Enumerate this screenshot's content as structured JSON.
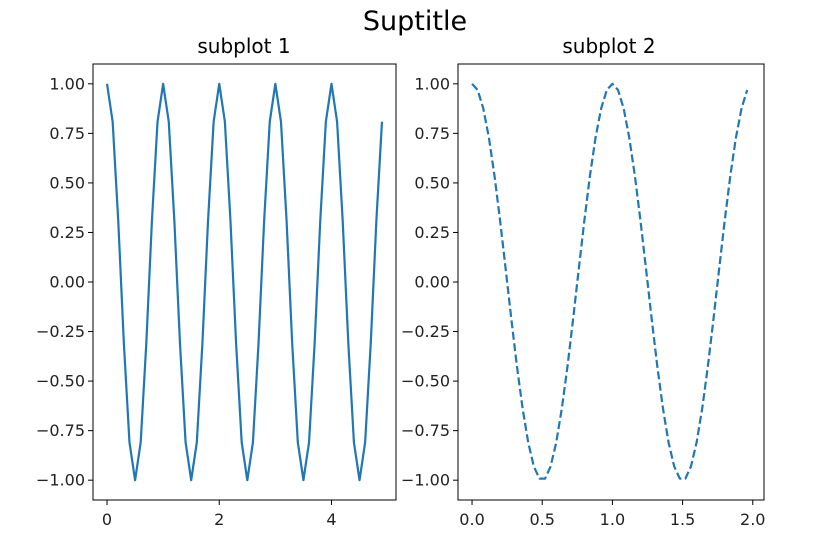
{
  "figure": {
    "suptitle": "Suptitle"
  },
  "chart_data": [
    {
      "type": "line",
      "title": "subplot 1",
      "xlabel": "",
      "ylabel": "",
      "xlim": [
        -0.25,
        5.15
      ],
      "ylim": [
        -1.1,
        1.1
      ],
      "xticks": [
        0,
        2,
        4
      ],
      "xtick_labels": [
        "0",
        "2",
        "4"
      ],
      "yticks": [
        1.0,
        0.75,
        0.5,
        0.25,
        0.0,
        -0.25,
        -0.5,
        -0.75,
        -1.0
      ],
      "ytick_labels": [
        "1.00",
        "0.75",
        "0.50",
        "0.25",
        "0.00",
        "−0.25",
        "−0.50",
        "−0.75",
        "−1.00"
      ],
      "grid": false,
      "series": [
        {
          "line_style": "solid",
          "color": "#1f77b4",
          "x": [
            0.0,
            0.1,
            0.2,
            0.3,
            0.4,
            0.5,
            0.6,
            0.7,
            0.8,
            0.9,
            1.0,
            1.1,
            1.2,
            1.3,
            1.4,
            1.5,
            1.6,
            1.7,
            1.8,
            1.9,
            2.0,
            2.1,
            2.2,
            2.3,
            2.4,
            2.5,
            2.6,
            2.7,
            2.8,
            2.9,
            3.0,
            3.1,
            3.2,
            3.3,
            3.4,
            3.5,
            3.6,
            3.7,
            3.8,
            3.9,
            4.0,
            4.1,
            4.2,
            4.3,
            4.4,
            4.5,
            4.6,
            4.7,
            4.8,
            4.9
          ],
          "y": [
            1.0,
            0.809,
            0.309,
            -0.309,
            -0.809,
            -1.0,
            -0.809,
            -0.309,
            0.309,
            0.809,
            1.0,
            0.809,
            0.309,
            -0.309,
            -0.809,
            -1.0,
            -0.809,
            -0.309,
            0.309,
            0.809,
            1.0,
            0.809,
            0.309,
            -0.309,
            -0.809,
            -1.0,
            -0.809,
            -0.309,
            0.309,
            0.809,
            1.0,
            0.809,
            0.309,
            -0.309,
            -0.809,
            -1.0,
            -0.809,
            -0.309,
            0.309,
            0.809,
            1.0,
            0.809,
            0.309,
            -0.309,
            -0.809,
            -1.0,
            -0.809,
            -0.309,
            0.309,
            0.809
          ]
        }
      ]
    },
    {
      "type": "line",
      "title": "subplot 2",
      "xlabel": "",
      "ylabel": "",
      "xlim": [
        -0.1,
        2.08
      ],
      "ylim": [
        -1.1,
        1.1
      ],
      "xticks": [
        0.0,
        0.5,
        1.0,
        1.5,
        2.0
      ],
      "xtick_labels": [
        "0.0",
        "0.5",
        "1.0",
        "1.5",
        "2.0"
      ],
      "yticks": [
        1.0,
        0.75,
        0.5,
        0.25,
        0.0,
        -0.25,
        -0.5,
        -0.75,
        -1.0
      ],
      "ytick_labels": [
        "1.00",
        "0.75",
        "0.50",
        "0.25",
        "0.00",
        "−0.25",
        "−0.50",
        "−0.75",
        "−1.00"
      ],
      "grid": false,
      "series": [
        {
          "line_style": "dashed",
          "color": "#1f77b4",
          "x": [
            0.0,
            0.04,
            0.08,
            0.12,
            0.16,
            0.2,
            0.24,
            0.28,
            0.32,
            0.36,
            0.4,
            0.44,
            0.48,
            0.52,
            0.56,
            0.6,
            0.64,
            0.68,
            0.72,
            0.76,
            0.8,
            0.84,
            0.88,
            0.92,
            0.96,
            1.0,
            1.04,
            1.08,
            1.12,
            1.16,
            1.2,
            1.24,
            1.28,
            1.32,
            1.36,
            1.4,
            1.44,
            1.48,
            1.52,
            1.56,
            1.6,
            1.64,
            1.68,
            1.72,
            1.76,
            1.8,
            1.84,
            1.88,
            1.92,
            1.96
          ],
          "y": [
            1.0,
            0.969,
            0.876,
            0.729,
            0.536,
            0.309,
            0.063,
            -0.187,
            -0.426,
            -0.637,
            -0.809,
            -0.93,
            -0.992,
            -0.992,
            -0.93,
            -0.809,
            -0.637,
            -0.426,
            -0.187,
            0.063,
            0.309,
            0.536,
            0.729,
            0.876,
            0.969,
            1.0,
            0.969,
            0.876,
            0.729,
            0.536,
            0.309,
            0.063,
            -0.187,
            -0.426,
            -0.637,
            -0.809,
            -0.93,
            -0.992,
            -0.992,
            -0.93,
            -0.809,
            -0.637,
            -0.426,
            -0.187,
            0.063,
            0.309,
            0.536,
            0.729,
            0.876,
            0.969
          ]
        }
      ]
    }
  ]
}
